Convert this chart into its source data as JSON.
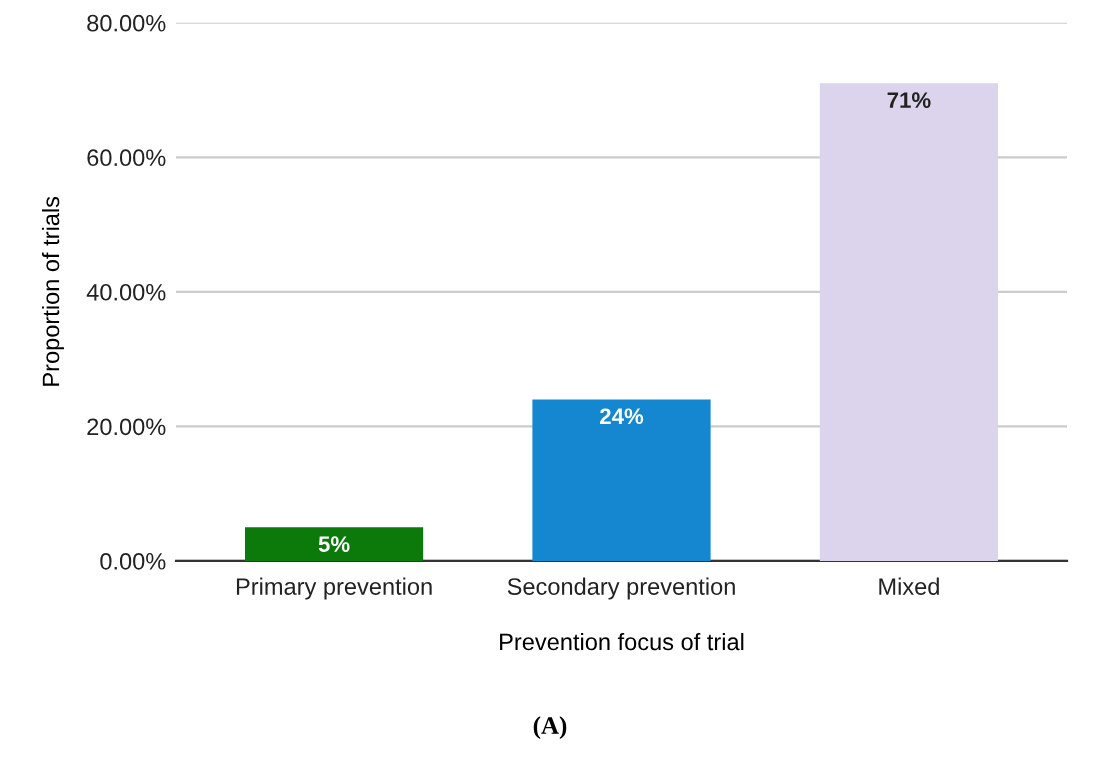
{
  "chart_data": {
    "type": "bar",
    "xlabel": "Prevention focus of trial",
    "ylabel": "Proportion of trials",
    "categories": [
      "Primary prevention",
      "Secondary prevention",
      "Mixed"
    ],
    "values": [
      5,
      24,
      71
    ],
    "value_labels": [
      "5%",
      "24%",
      "71%"
    ],
    "colors": [
      "#0b7a0b",
      "#1487d0",
      "#dcd3ec"
    ],
    "ylim": [
      0,
      80
    ],
    "yticks": [
      {
        "value": 0,
        "label": "0.00%"
      },
      {
        "value": 20,
        "label": "20.00%"
      },
      {
        "value": 40,
        "label": "40.00%"
      },
      {
        "value": 60,
        "label": "60.00%"
      },
      {
        "value": 80,
        "label": "80.00%"
      }
    ],
    "grid": "y",
    "annotations": [
      "(A)"
    ]
  }
}
